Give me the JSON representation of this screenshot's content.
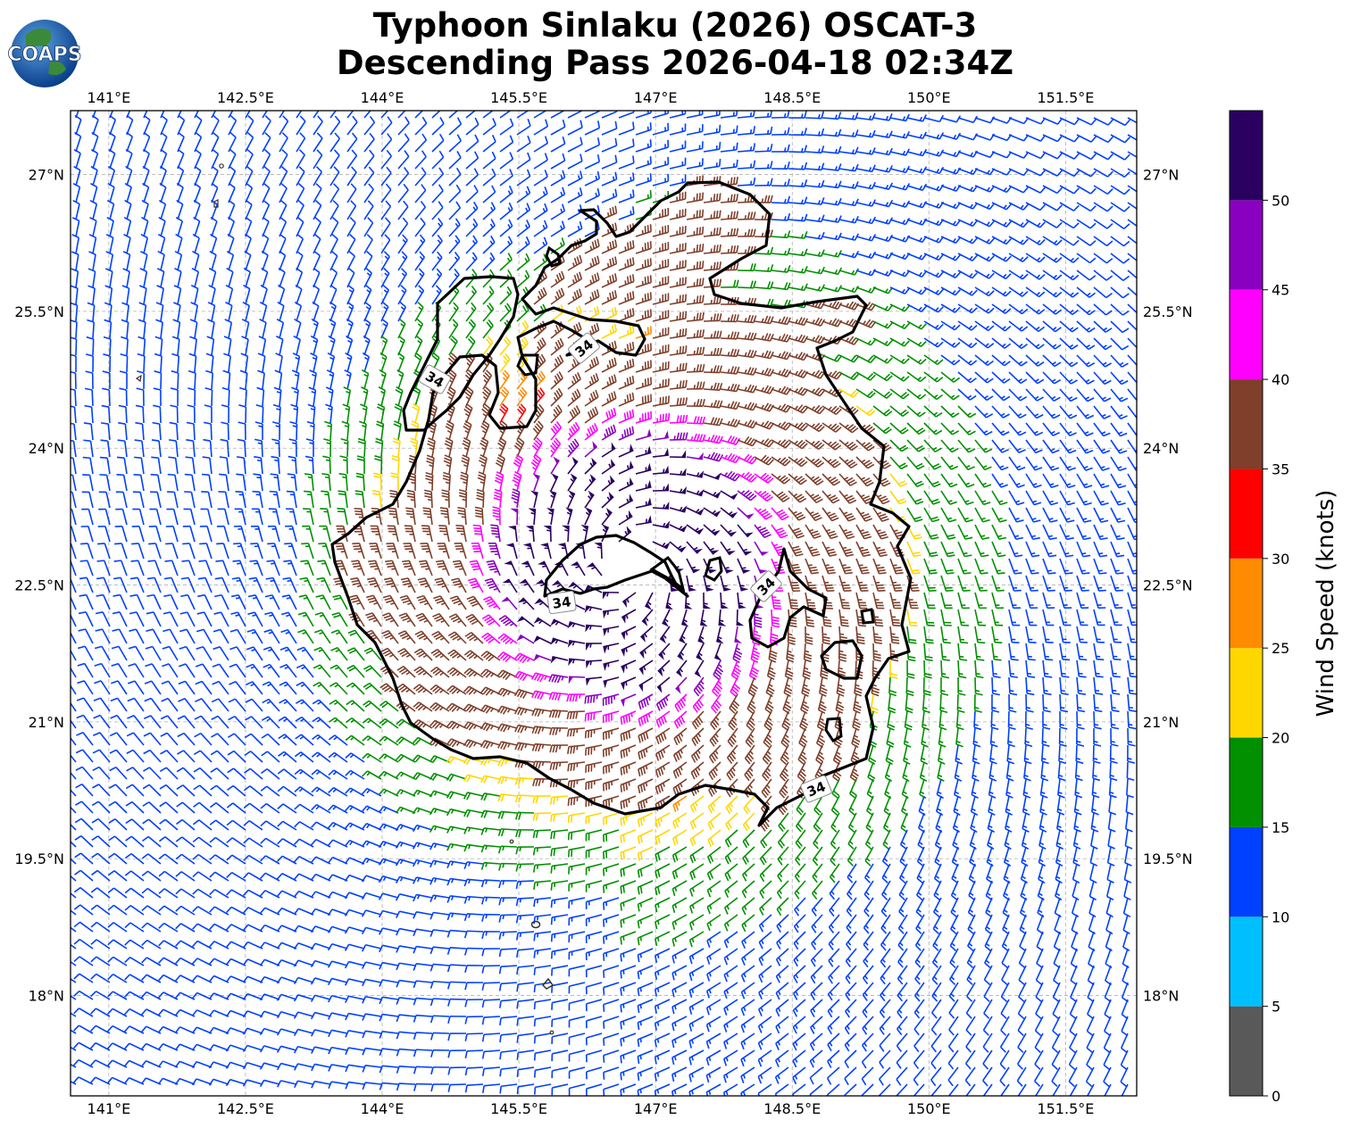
{
  "logo": {
    "text": "COAPS"
  },
  "chart_data": {
    "type": "wind-barb map",
    "title_line1": "Typhoon Sinlaku (2026) OSCAT-3",
    "title_line2": "Descending Pass 2026-04-18 02:34Z",
    "lon_range": [
      140.58,
      152.28
    ],
    "lat_range": [
      16.9,
      27.7
    ],
    "lon_ticks": [
      141.0,
      142.5,
      144.0,
      145.5,
      147.0,
      148.5,
      150.0,
      151.5
    ],
    "lon_tick_labels": [
      "141°E",
      "142.5°E",
      "144°E",
      "145.5°E",
      "147°E",
      "148.5°E",
      "150°E",
      "151.5°E"
    ],
    "lat_ticks": [
      27.0,
      25.5,
      24.0,
      22.5,
      21.0,
      19.5,
      18.0
    ],
    "lat_tick_labels": [
      "27°N",
      "25.5°N",
      "24°N",
      "22.5°N",
      "21°N",
      "19.5°N",
      "18°N"
    ],
    "grid": true,
    "storm_center": {
      "lon": 146.7,
      "lat": 22.7
    },
    "max_wind_kt": 55,
    "contour_level_kt": 34,
    "contour_labels": [
      "34",
      "34",
      "34",
      "34",
      "34"
    ],
    "colorbar": {
      "label": "Wind Speed (knots)",
      "min": 0,
      "max": 55,
      "tick_values": [
        0,
        5,
        10,
        15,
        20,
        25,
        30,
        35,
        40,
        45,
        50
      ],
      "tick_labels": [
        "0",
        "5",
        "10",
        "15",
        "20",
        "25",
        "30",
        "35",
        "40",
        "45",
        "50"
      ],
      "bins": [
        {
          "from": 0,
          "to": 5,
          "color": "#595959"
        },
        {
          "from": 5,
          "to": 10,
          "color": "#00bfff"
        },
        {
          "from": 10,
          "to": 15,
          "color": "#0040ff"
        },
        {
          "from": 15,
          "to": 20,
          "color": "#009000"
        },
        {
          "from": 20,
          "to": 25,
          "color": "#ffd700"
        },
        {
          "from": 25,
          "to": 30,
          "color": "#ff8c00"
        },
        {
          "from": 30,
          "to": 35,
          "color": "#ff0000"
        },
        {
          "from": 35,
          "to": 40,
          "color": "#7f3f2a"
        },
        {
          "from": 40,
          "to": 45,
          "color": "#ff00ff"
        },
        {
          "from": 45,
          "to": 50,
          "color": "#8a00c0"
        },
        {
          "from": 50,
          "to": 55,
          "color": "#2a0060"
        }
      ]
    }
  }
}
